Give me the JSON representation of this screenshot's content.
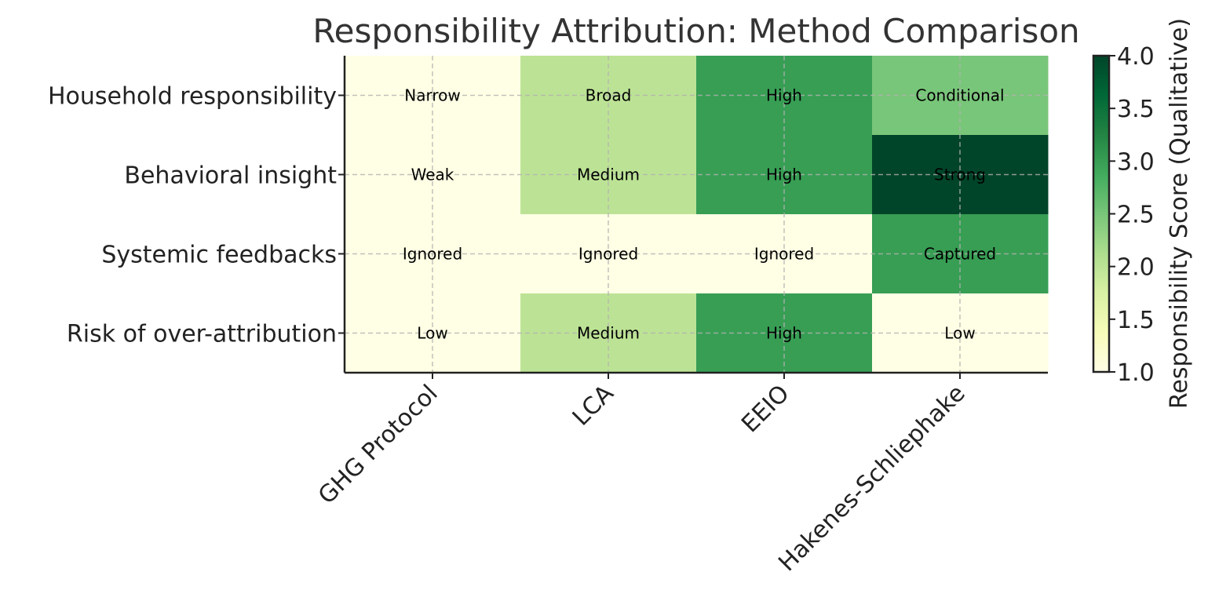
{
  "chart_data": {
    "type": "heatmap",
    "title": "Responsibility Attribution: Method Comparison",
    "columns": [
      "GHG Protocol",
      "LCA",
      "EEIO",
      "Hakenes-Schliephake"
    ],
    "rows": [
      "Household responsibility",
      "Behavioral insight",
      "Systemic feedbacks",
      "Risk of over-attribution"
    ],
    "values": [
      [
        1,
        2,
        3,
        2.5
      ],
      [
        1,
        2,
        3,
        4
      ],
      [
        1,
        1,
        1,
        3
      ],
      [
        1,
        2,
        3,
        1
      ]
    ],
    "annotations": [
      [
        "Narrow",
        "Broad",
        "High",
        "Conditional"
      ],
      [
        "Weak",
        "Medium",
        "High",
        "Strong"
      ],
      [
        "Ignored",
        "Ignored",
        "Ignored",
        "Captured"
      ],
      [
        "Low",
        "Medium",
        "High",
        "Low"
      ]
    ],
    "colorbar": {
      "label": "Responsibility Score (Qualitative)",
      "range": [
        1.0,
        4.0
      ],
      "ticks": [
        "1.0",
        "1.5",
        "2.0",
        "2.5",
        "3.0",
        "3.5",
        "4.0"
      ],
      "colormap": "YlGn"
    },
    "grid": true
  }
}
